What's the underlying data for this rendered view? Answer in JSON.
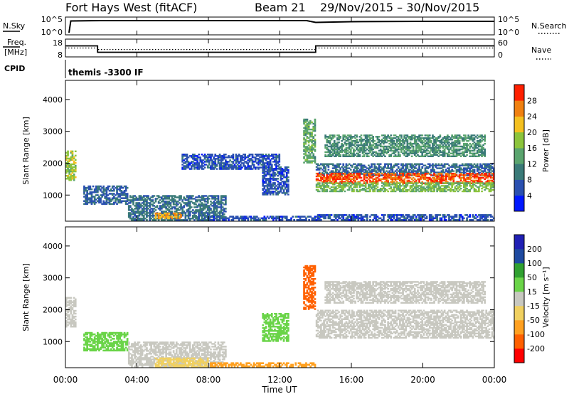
{
  "header": {
    "title": "Fort Hays West (fitACF)",
    "beam": "Beam 21",
    "dates": "29/Nov/2015 – 30/Nov/2015"
  },
  "nsky_panel": {
    "left_label": "N.Sky",
    "right_label": "N.Search",
    "y_ticks_left": [
      "10^5",
      "10^0"
    ],
    "y_ticks_right": [
      "10^5",
      "10^0"
    ]
  },
  "freq_panel": {
    "left_label_line1": "Freq.",
    "left_label_line2": "[MHz]",
    "right_label": "Nave",
    "y_ticks_left": [
      "18",
      "8"
    ],
    "y_ticks_right": [
      "60",
      "0"
    ]
  },
  "cpid_panel": {
    "left_label": "CPID",
    "text": "themis -3300 IF"
  },
  "x_axis": {
    "tick_labels": [
      "00:00",
      "04:00",
      "08:00",
      "12:00",
      "16:00",
      "20:00",
      "00:00"
    ],
    "label": "Time UT"
  },
  "range_axis": {
    "label": "Slant Range [km]",
    "tick_labels": [
      "1000",
      "2000",
      "3000",
      "4000"
    ]
  },
  "colors": {
    "power": [
      "#0018ff",
      "#2a50b0",
      "#3a7a78",
      "#5aa46e",
      "#8cc43c",
      "#f4c020",
      "#f08010",
      "#ff2000"
    ],
    "velocity": [
      "#ff0000",
      "#ff6000",
      "#ffa020",
      "#f0d060",
      "#c8c8c0",
      "#6ad448",
      "#30a030",
      "#1e4aa0",
      "#2020b4"
    ]
  },
  "chart_data": [
    {
      "type": "line",
      "panel": "N.Sky / N.Search",
      "xlabel": "Time UT",
      "x_range_hours": [
        0,
        24
      ],
      "series": [
        {
          "name": "N.Sky",
          "x": [
            0.2,
            0.3,
            2,
            6,
            10,
            13.5,
            14,
            16,
            20,
            24
          ],
          "values": [
            0.6,
            3.9,
            4.0,
            4.0,
            4.0,
            4.0,
            3.5,
            3.7,
            3.8,
            3.8
          ]
        },
        {
          "name": "N.Search",
          "x": [
            0,
            24
          ],
          "values": [
            0,
            0
          ]
        }
      ],
      "y_log_ticks": [
        0,
        5
      ]
    },
    {
      "type": "line",
      "panel": "Freq / Nave",
      "x_range_hours": [
        0,
        24
      ],
      "series": [
        {
          "name": "Freq.",
          "x": [
            0,
            1.8,
            1.8,
            14,
            14,
            24
          ],
          "values": [
            14.2,
            14.2,
            10.6,
            10.6,
            14.2,
            14.2
          ]
        },
        {
          "name": "Nave",
          "x": [
            0,
            1.8,
            1.8,
            14,
            14,
            24
          ],
          "values": [
            30,
            30,
            25,
            25,
            30,
            30
          ]
        }
      ],
      "ylim_left": [
        8,
        18
      ],
      "ylim_right": [
        0,
        60
      ]
    },
    {
      "type": "heatmap",
      "panel": "Power",
      "xlabel": "Time UT",
      "ylabel": "Slant Range [km]",
      "colorbar_label": "Power [dB]",
      "colorbar_ticks": [
        "4",
        "8",
        "12",
        "16",
        "20",
        "24",
        "28"
      ],
      "x_range_hours": [
        0,
        24
      ],
      "ylim_km": [
        180,
        4600
      ],
      "patches": [
        {
          "t": [
            0.0,
            0.6
          ],
          "r": [
            1450,
            2400
          ],
          "v": 18
        },
        {
          "t": [
            1.0,
            3.5
          ],
          "r": [
            700,
            1300
          ],
          "v": 7
        },
        {
          "t": [
            3.5,
            9.0
          ],
          "r": [
            200,
            1000
          ],
          "v": 9
        },
        {
          "t": [
            5.0,
            6.5
          ],
          "r": [
            250,
            450
          ],
          "v": 24
        },
        {
          "t": [
            6.5,
            12.0
          ],
          "r": [
            1800,
            2300
          ],
          "v": 6
        },
        {
          "t": [
            11.0,
            12.5
          ],
          "r": [
            1000,
            1900
          ],
          "v": 6
        },
        {
          "t": [
            8.0,
            14.0
          ],
          "r": [
            200,
            350
          ],
          "v": 6
        },
        {
          "t": [
            13.3,
            14.0
          ],
          "r": [
            2000,
            3400
          ],
          "v": 14
        },
        {
          "t": [
            14.0,
            24.0
          ],
          "r": [
            1600,
            2000
          ],
          "v": 8
        },
        {
          "t": [
            14.0,
            24.0
          ],
          "r": [
            1350,
            1700
          ],
          "v": 28
        },
        {
          "t": [
            14.0,
            24.0
          ],
          "r": [
            1100,
            1400
          ],
          "v": 16
        },
        {
          "t": [
            14.5,
            23.5
          ],
          "r": [
            2200,
            2900
          ],
          "v": 12
        },
        {
          "t": [
            14.0,
            24.0
          ],
          "r": [
            200,
            400
          ],
          "v": 6
        }
      ]
    },
    {
      "type": "heatmap",
      "panel": "Velocity",
      "xlabel": "Time UT",
      "ylabel": "Slant Range [km]",
      "colorbar_label": "Velocity [m s⁻¹]",
      "colorbar_ticks": [
        "-200",
        "-100",
        "-50",
        "-15",
        "15",
        "50",
        "100",
        "200"
      ],
      "x_range_hours": [
        0,
        24
      ],
      "ylim_km": [
        180,
        4600
      ],
      "patches": [
        {
          "t": [
            0.0,
            0.6
          ],
          "r": [
            1450,
            2400
          ],
          "v": 0
        },
        {
          "t": [
            1.0,
            3.5
          ],
          "r": [
            700,
            1300
          ],
          "v": 30
        },
        {
          "t": [
            3.5,
            9.0
          ],
          "r": [
            200,
            1000
          ],
          "v": 0
        },
        {
          "t": [
            5.0,
            8.0
          ],
          "r": [
            200,
            500
          ],
          "v": -40
        },
        {
          "t": [
            8.0,
            14.0
          ],
          "r": [
            200,
            350
          ],
          "v": -60
        },
        {
          "t": [
            11.0,
            12.5
          ],
          "r": [
            1000,
            1900
          ],
          "v": 30
        },
        {
          "t": [
            13.3,
            14.0
          ],
          "r": [
            2000,
            3400
          ],
          "v": -120
        },
        {
          "t": [
            14.0,
            24.0
          ],
          "r": [
            1100,
            2000
          ],
          "v": 0
        },
        {
          "t": [
            14.5,
            23.5
          ],
          "r": [
            2200,
            2900
          ],
          "v": 0
        }
      ]
    }
  ]
}
